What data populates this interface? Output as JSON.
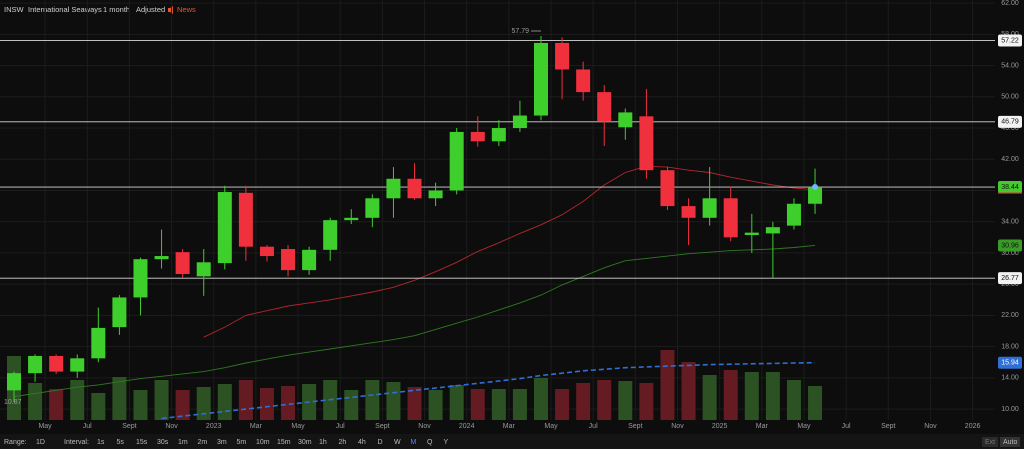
{
  "header": {
    "symbol": "INSW",
    "name": "International Seaways",
    "period": "1 month",
    "mode": "Adjusted",
    "news": "News"
  },
  "toolbar": {
    "range_label": "Range:",
    "range": "1D",
    "interval_label": "Interval:",
    "intervals": [
      "1s",
      "5s",
      "15s",
      "30s",
      "1m",
      "2m",
      "3m",
      "5m",
      "10m",
      "15m",
      "30m",
      "1h",
      "2h",
      "4h",
      "D",
      "W",
      "M",
      "Q",
      "Y"
    ],
    "active_interval": "M",
    "ext": "Ext",
    "auto": "Auto"
  },
  "chart_data": {
    "type": "candlestick",
    "x_labels": [
      "May",
      "Jul",
      "Sept",
      "Nov",
      "2023",
      "Mar",
      "May",
      "Jul",
      "Sept",
      "Nov",
      "2024",
      "Mar",
      "May",
      "Jul",
      "Sept",
      "Nov",
      "2025",
      "Mar",
      "May",
      "Jul",
      "Sept",
      "Nov",
      "2026"
    ],
    "open": [
      12.4,
      14.6,
      16.8,
      14.8,
      16.5,
      20.5,
      24.3,
      29.2,
      30.1,
      27.0,
      28.7,
      37.7,
      30.8,
      30.5,
      27.8,
      30.4,
      34.2,
      34.5,
      37.0,
      39.5,
      37.0,
      38.0,
      45.5,
      44.3,
      46.0,
      47.6,
      56.9,
      53.5,
      50.6,
      46.1,
      47.5,
      40.6,
      36.0,
      34.5,
      37.0,
      32.3,
      32.5,
      33.5,
      36.3
    ],
    "high": [
      14.8,
      17.0,
      17.0,
      17.0,
      23.0,
      24.6,
      29.4,
      33.0,
      30.5,
      30.5,
      38.6,
      38.6,
      31.0,
      31.0,
      30.8,
      34.5,
      35.6,
      37.5,
      41.0,
      41.5,
      39.0,
      46.0,
      47.5,
      47.0,
      49.5,
      57.79,
      57.6,
      54.5,
      51.5,
      48.5,
      51.0,
      41.0,
      37.0,
      41.0,
      38.5,
      35.0,
      34.0,
      37.0,
      40.8
    ],
    "low": [
      10.87,
      13.5,
      14.5,
      14.0,
      16.0,
      19.5,
      22.0,
      28.0,
      26.8,
      24.5,
      27.9,
      29.0,
      28.9,
      27.0,
      27.2,
      29.0,
      33.7,
      33.3,
      34.5,
      36.8,
      36.0,
      37.5,
      43.6,
      43.7,
      45.5,
      47.0,
      49.7,
      49.5,
      43.7,
      44.5,
      39.5,
      35.5,
      31.0,
      33.5,
      31.5,
      30.0,
      26.8,
      33.0,
      35.0
    ],
    "close": [
      14.6,
      16.8,
      14.8,
      16.5,
      20.4,
      24.3,
      29.2,
      29.6,
      27.3,
      28.8,
      37.8,
      30.8,
      29.6,
      27.8,
      30.4,
      34.2,
      34.5,
      37.0,
      39.5,
      37.0,
      38.0,
      45.5,
      44.3,
      46.0,
      47.6,
      56.9,
      53.5,
      50.6,
      46.8,
      48.0,
      40.6,
      36.0,
      34.5,
      37.0,
      32.0,
      32.6,
      33.3,
      36.3,
      38.44
    ],
    "volume": [
      64,
      37,
      31,
      40,
      27,
      43,
      30,
      40,
      30,
      33,
      36,
      40,
      32,
      34,
      36,
      40,
      30,
      40,
      38,
      33,
      30,
      35,
      31,
      31,
      31,
      42,
      31,
      37,
      40,
      39,
      37,
      70,
      58,
      45,
      50,
      48,
      48,
      40,
      34
    ],
    "volume_lim": [
      0,
      80
    ],
    "up_color": "#3fcf2c",
    "down_color": "#f0303c",
    "volume_up_color": "#2c5223",
    "volume_down_color": "#641c22",
    "series": [
      {
        "color": "#b3262c",
        "values": [
          null,
          null,
          null,
          null,
          null,
          null,
          null,
          null,
          null,
          19.2,
          20.5,
          22.0,
          22.6,
          23.2,
          23.6,
          24.0,
          24.5,
          25.0,
          25.6,
          26.5,
          27.6,
          28.8,
          30.2,
          31.3,
          32.5,
          33.6,
          34.9,
          36.6,
          38.7,
          40.3,
          41.1,
          41.0,
          40.6,
          40.3,
          39.7,
          39.2,
          38.7,
          38.3,
          38.1
        ]
      },
      {
        "color": "#2f7a22",
        "values": [
          11.6,
          12.0,
          12.4,
          12.8,
          13.1,
          13.5,
          13.9,
          14.2,
          14.5,
          14.8,
          15.3,
          15.9,
          16.4,
          16.9,
          17.3,
          17.7,
          18.1,
          18.5,
          18.9,
          19.4,
          20.2,
          21.0,
          21.8,
          22.7,
          23.6,
          24.6,
          25.9,
          27.0,
          28.1,
          29.0,
          29.3,
          29.6,
          29.9,
          30.1,
          30.3,
          30.4,
          30.5,
          30.7,
          30.96
        ]
      },
      {
        "color": "#2f6fd6",
        "dashed": true,
        "values": [
          null,
          null,
          null,
          null,
          null,
          null,
          null,
          8.8,
          9.1,
          9.4,
          9.7,
          10.0,
          10.3,
          10.6,
          10.9,
          11.2,
          11.5,
          11.8,
          12.1,
          12.4,
          12.7,
          13.0,
          13.3,
          13.6,
          13.9,
          14.3,
          14.6,
          14.9,
          15.1,
          15.3,
          15.4,
          15.5,
          15.6,
          15.7,
          15.75,
          15.8,
          15.85,
          15.9,
          15.94
        ]
      }
    ],
    "price_lines": [
      57.22,
      46.79,
      38.44,
      26.77
    ],
    "ylim": [
      8.6,
      62.4
    ],
    "yticks": [
      {
        "value": 62,
        "label": "62.00"
      },
      {
        "value": 58,
        "label": "58.00"
      },
      {
        "value": 54,
        "label": "54.00"
      },
      {
        "value": 50,
        "label": "50.00"
      },
      {
        "value": 46,
        "label": "46.00"
      },
      {
        "value": 42,
        "label": "42.00"
      },
      {
        "value": 38,
        "label": "38.00"
      },
      {
        "value": 34,
        "label": "34.00"
      },
      {
        "value": 30,
        "label": "30.00"
      },
      {
        "value": 26,
        "label": "26.00"
      },
      {
        "value": 22,
        "label": "22.00"
      },
      {
        "value": 18,
        "label": "18.00"
      },
      {
        "value": 14,
        "label": "14.00"
      },
      {
        "value": 10,
        "label": "10.00"
      }
    ],
    "grid": true
  }
}
